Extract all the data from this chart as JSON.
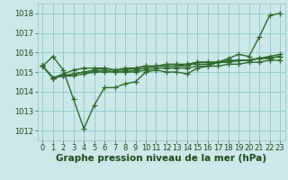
{
  "x": [
    0,
    1,
    2,
    3,
    4,
    5,
    6,
    7,
    8,
    9,
    10,
    11,
    12,
    13,
    14,
    15,
    16,
    17,
    18,
    19,
    20,
    21,
    22,
    23
  ],
  "lines": [
    [
      1015.3,
      1015.8,
      1015.1,
      1013.6,
      1012.1,
      1013.3,
      1014.2,
      1014.2,
      1014.4,
      1014.5,
      1015.0,
      1015.1,
      1015.0,
      1015.0,
      1014.9,
      1015.2,
      1015.3,
      1015.5,
      1015.7,
      1015.9,
      1015.8,
      1016.8,
      1017.9,
      1018.0
    ],
    [
      1015.3,
      1014.7,
      1014.9,
      1015.1,
      1015.2,
      1015.2,
      1015.2,
      1015.1,
      1015.2,
      1015.2,
      1015.3,
      1015.3,
      1015.3,
      1015.3,
      1015.3,
      1015.5,
      1015.5,
      1015.5,
      1015.6,
      1015.6,
      1015.6,
      1015.7,
      1015.7,
      1015.8
    ],
    [
      1015.3,
      1014.7,
      1014.8,
      1014.9,
      1015.0,
      1015.1,
      1015.2,
      1015.1,
      1015.1,
      1015.2,
      1015.3,
      1015.3,
      1015.4,
      1015.4,
      1015.4,
      1015.5,
      1015.5,
      1015.5,
      1015.5,
      1015.6,
      1015.6,
      1015.7,
      1015.7,
      1015.8
    ],
    [
      1015.3,
      1014.7,
      1014.8,
      1014.8,
      1014.9,
      1015.0,
      1015.1,
      1015.0,
      1015.0,
      1015.1,
      1015.2,
      1015.3,
      1015.3,
      1015.3,
      1015.4,
      1015.4,
      1015.4,
      1015.5,
      1015.5,
      1015.6,
      1015.6,
      1015.7,
      1015.8,
      1015.9
    ],
    [
      1015.3,
      1014.7,
      1014.8,
      1014.9,
      1015.0,
      1015.0,
      1015.0,
      1015.0,
      1015.0,
      1015.0,
      1015.1,
      1015.2,
      1015.2,
      1015.2,
      1015.2,
      1015.3,
      1015.3,
      1015.3,
      1015.4,
      1015.4,
      1015.5,
      1015.5,
      1015.6,
      1015.6
    ]
  ],
  "line_color": "#2d6a2d",
  "bg_color": "#cce8e8",
  "grid_color": "#99cccc",
  "xlabel": "Graphe pression niveau de la mer (hPa)",
  "ylim": [
    1011.5,
    1018.5
  ],
  "xlim": [
    -0.5,
    23.5
  ],
  "yticks": [
    1012,
    1013,
    1014,
    1015,
    1016,
    1017,
    1018
  ],
  "xticks": [
    0,
    1,
    2,
    3,
    4,
    5,
    6,
    7,
    8,
    9,
    10,
    11,
    12,
    13,
    14,
    15,
    16,
    17,
    18,
    19,
    20,
    21,
    22,
    23
  ],
  "marker": "+",
  "markersize": 4,
  "linewidth": 1.0,
  "xlabel_fontsize": 7.5,
  "tick_fontsize": 6,
  "xlabel_color": "#1a4a1a",
  "tick_color": "#1a4a1a"
}
